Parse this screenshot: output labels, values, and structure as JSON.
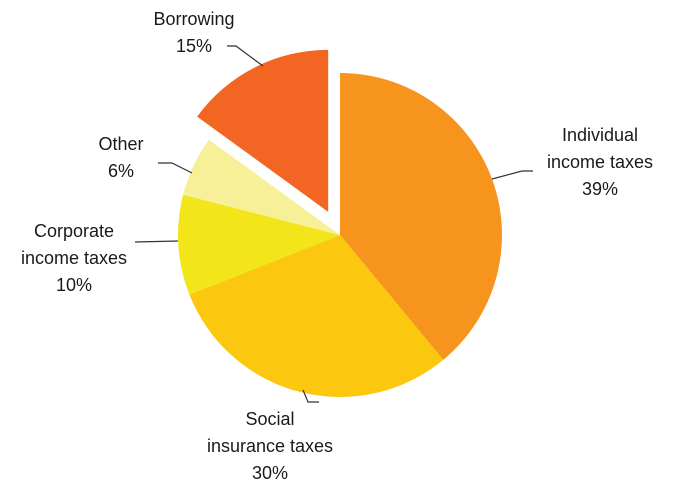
{
  "chart_data": {
    "type": "pie",
    "title": "",
    "unit": "%",
    "slices": [
      {
        "label_lines": [
          "Individual",
          "income taxes"
        ],
        "pct_text": "39%",
        "value": 39,
        "color": "#f7941d",
        "exploded": false
      },
      {
        "label_lines": [
          "Social",
          "insurance taxes"
        ],
        "pct_text": "30%",
        "value": 30,
        "color": "#fcc70f",
        "exploded": false
      },
      {
        "label_lines": [
          "Corporate",
          "income taxes"
        ],
        "pct_text": "10%",
        "value": 10,
        "color": "#f2e61b",
        "exploded": false
      },
      {
        "label_lines": [
          "Other"
        ],
        "pct_text": "6%",
        "value": 6,
        "color": "#f7f099",
        "exploded": false
      },
      {
        "label_lines": [
          "Borrowing"
        ],
        "pct_text": "15%",
        "value": 15,
        "color": "#f26522",
        "exploded": true
      }
    ],
    "start_angle_deg": 0,
    "direction": "clockwise",
    "legend": "none"
  }
}
